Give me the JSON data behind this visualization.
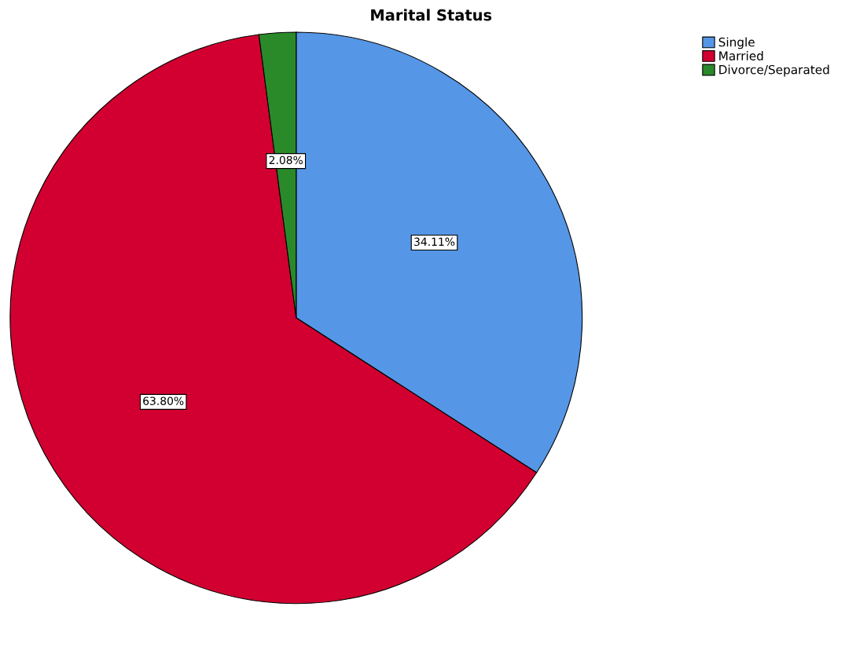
{
  "chart_data": {
    "type": "pie",
    "title": "Marital Status",
    "categories": [
      "Single",
      "Married",
      "Divorce/Separated"
    ],
    "values": [
      34.11,
      63.8,
      2.08
    ],
    "colors": [
      "#5596e6",
      "#d20030",
      "#2a8a2a"
    ],
    "value_labels": [
      "34.11%",
      "63.80%",
      "2.08%"
    ],
    "legend": "top right"
  }
}
